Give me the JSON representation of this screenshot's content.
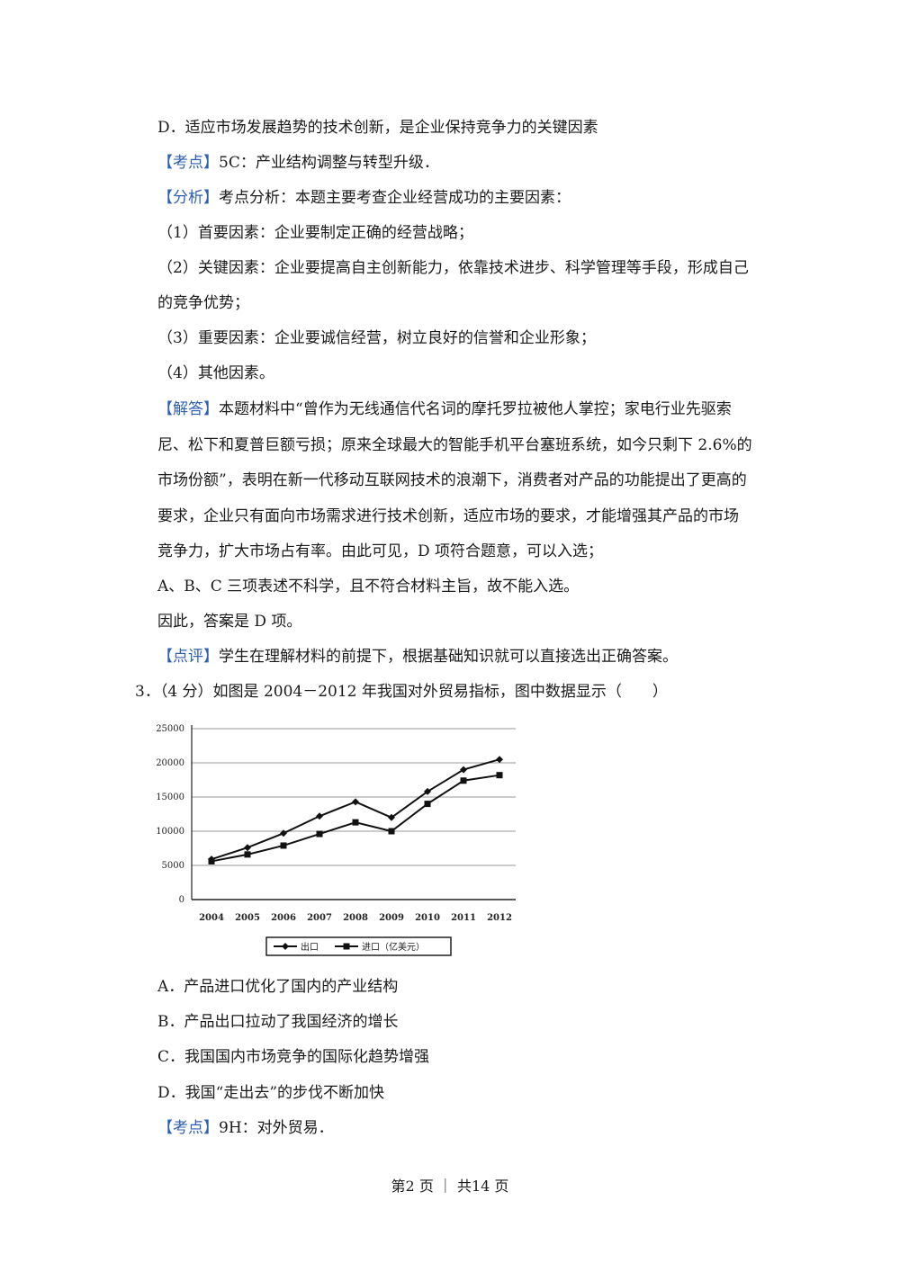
{
  "prev": {
    "option_d": "D．适应市场发展趋势的技术创新，是企业保持竞争力的关键因素",
    "kaodian_tag": "【考点】",
    "kaodian_text": "5C：产业结构调整与转型升级．",
    "fenxi_tag": "【分析】",
    "fenxi_text": "考点分析：本题主要考查企业经营成功的主要因素：",
    "points": [
      "（1）首要因素：企业要制定正确的经营战略；",
      "（2）关键因素：企业要提高自主创新能力，依靠技术进步、科学管理等手段，形成自己",
      "的竞争优势；",
      "（3）重要因素：企业要诚信经营，树立良好的信誉和企业形象；",
      "（4）其他因素。"
    ],
    "jieda_tag": "【解答】",
    "jieda_lines": [
      "本题材料中“曾作为无线通信代名词的摩托罗拉被他人掌控；家电行业先驱索",
      "尼、松下和夏普巨额亏损；原来全球最大的智能手机平台塞班系统，如今只剩下 2.6%的",
      "市场份额”，表明在新一代移动互联网技术的浪潮下，消费者对产品的功能提出了更高的",
      "要求，企业只有面向市场需求进行技术创新，适应市场的要求，才能增强其产品的市场",
      "竞争力，扩大市场占有率。由此可见，D 项符合题意，可以入选；",
      "A、B、C 三项表述不科学，且不符合材料主旨，故不能入选。",
      "因此，答案是 D 项。"
    ],
    "dianping_tag": "【点评】",
    "dianping_text": "学生在理解材料的前提下，根据基础知识就可以直接选出正确答案。"
  },
  "q3": {
    "stem": "3．（4 分）如图是 2004－2012 年我国对外贸易指标，图中数据显示（　　）",
    "options": [
      "A．产品进口优化了国内的产业结构",
      "B．产品出口拉动了我国经济的增长",
      "C．我国国内市场竞争的国际化趋势增强",
      "D．我国“走出去”的步伐不断加快"
    ],
    "kaodian_tag": "【考点】",
    "kaodian_text": "9H：对外贸易．"
  },
  "chart_data": {
    "type": "line",
    "title": "",
    "xlabel": "",
    "ylabel": "",
    "categories": [
      "2004",
      "2005",
      "2006",
      "2007",
      "2008",
      "2009",
      "2010",
      "2011",
      "2012"
    ],
    "yticks": [
      "0",
      "5000",
      "10000",
      "15000",
      "20000",
      "25000"
    ],
    "ylim": [
      0,
      25000
    ],
    "grid": true,
    "legend_position": "bottom",
    "legend_items": [
      "出口",
      "进口（亿美元）"
    ],
    "series": [
      {
        "name": "出口",
        "marker": "diamond",
        "values": [
          5900,
          7600,
          9700,
          12200,
          14300,
          12000,
          15800,
          19000,
          20500
        ]
      },
      {
        "name": "进口（亿美元）",
        "marker": "square",
        "values": [
          5600,
          6600,
          7900,
          9600,
          11300,
          10000,
          14000,
          17400,
          18200
        ]
      }
    ]
  },
  "footer": {
    "text": "第2 页 ｜ 共14 页"
  }
}
